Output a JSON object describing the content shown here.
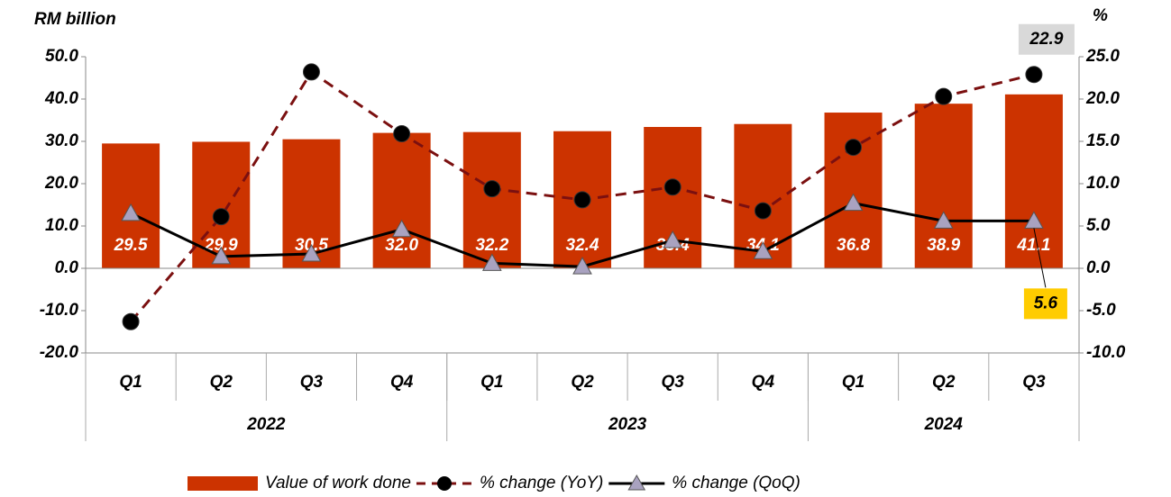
{
  "chart_data": {
    "type": "bar",
    "y_label": "RM billion",
    "y2_label": "%",
    "groups": [
      {
        "label": "2022",
        "categories": [
          "Q1",
          "Q2",
          "Q3",
          "Q4"
        ]
      },
      {
        "label": "2023",
        "categories": [
          "Q1",
          "Q2",
          "Q3",
          "Q4"
        ]
      },
      {
        "label": "2024",
        "categories": [
          "Q1",
          "Q2",
          "Q3"
        ]
      }
    ],
    "ylim": [
      -20,
      50
    ],
    "yticks": [
      {
        "value": -20,
        "label": "-20.0"
      },
      {
        "value": -10,
        "label": "-10.0"
      },
      {
        "value": 0,
        "label": "0.0"
      },
      {
        "value": 10,
        "label": "10.0"
      },
      {
        "value": 20,
        "label": "20.0"
      },
      {
        "value": 30,
        "label": "30.0"
      },
      {
        "value": 40,
        "label": "40.0"
      },
      {
        "value": 50,
        "label": "50.0"
      }
    ],
    "y2lim": [
      -10,
      25
    ],
    "y2ticks": [
      {
        "value": -10,
        "label": "-10.0"
      },
      {
        "value": -5,
        "label": "-5.0"
      },
      {
        "value": 0,
        "label": "0.0"
      },
      {
        "value": 5,
        "label": "5.0"
      },
      {
        "value": 10,
        "label": "10.0"
      },
      {
        "value": 15,
        "label": "15.0"
      },
      {
        "value": 20,
        "label": "20.0"
      },
      {
        "value": 25,
        "label": "25.0"
      }
    ],
    "series": [
      {
        "name": "Value of  work done",
        "type": "bar",
        "color": "#cc3300",
        "values": [
          29.5,
          29.9,
          30.5,
          32.0,
          32.2,
          32.4,
          33.4,
          34.1,
          36.8,
          38.9,
          41.1
        ],
        "value_labels": [
          "29.5",
          "29.9",
          "30.5",
          "32.0",
          "32.2",
          "32.4",
          "33.4",
          "34.1",
          "36.8",
          "38.9",
          "41.1"
        ]
      },
      {
        "name": "% change (YoY)",
        "type": "line",
        "axis": "y2",
        "color": "#7b1010",
        "dashed": true,
        "marker": "circle",
        "marker_color": "#000000",
        "values": [
          -6.3,
          6.1,
          23.2,
          15.9,
          9.4,
          8.1,
          9.6,
          6.8,
          14.3,
          20.3,
          22.9
        ],
        "value_labels": [
          null,
          null,
          null,
          null,
          null,
          null,
          null,
          null,
          null,
          null,
          "22.9"
        ],
        "label_color": "#d9d9d9"
      },
      {
        "name": "% change (QoQ)",
        "type": "line",
        "axis": "y2",
        "color": "#000000",
        "dashed": false,
        "marker": "triangle",
        "marker_color": "#a9a2c0",
        "values": [
          6.5,
          1.4,
          1.7,
          4.6,
          0.6,
          0.2,
          3.3,
          2.0,
          7.7,
          5.6,
          5.6
        ],
        "value_labels": [
          null,
          null,
          null,
          null,
          null,
          null,
          null,
          null,
          null,
          null,
          "5.6"
        ],
        "label_color": "#ffcc00"
      }
    ]
  }
}
